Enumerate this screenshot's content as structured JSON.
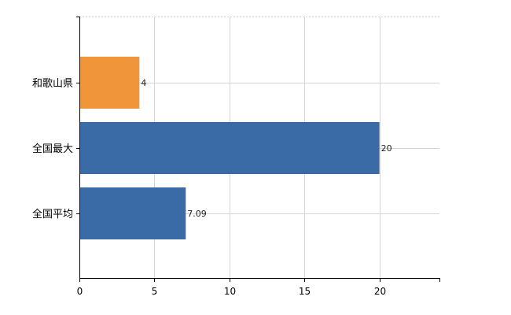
{
  "chart_data": {
    "type": "bar",
    "orientation": "horizontal",
    "categories": [
      "和歌山県",
      "全国最大",
      "全国平均"
    ],
    "values": [
      4,
      20,
      7.09
    ],
    "data_labels": [
      "4",
      "20",
      "7.09"
    ],
    "bar_colors": [
      "#f0953a",
      "#3a6ba7",
      "#3a6ba7"
    ],
    "xlim": [
      0,
      24
    ],
    "xticks": [
      0,
      5,
      10,
      15,
      20
    ],
    "xtick_labels": [
      "0",
      "5",
      "10",
      "15",
      "20"
    ],
    "grid": true,
    "legend": "none",
    "title": "",
    "xlabel": "",
    "ylabel": ""
  }
}
